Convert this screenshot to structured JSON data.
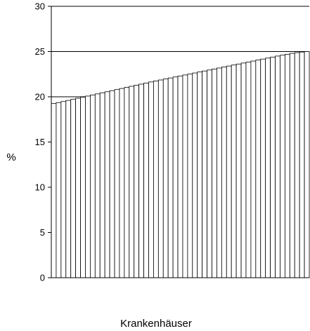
{
  "chart_data": {
    "type": "bar",
    "title": "",
    "xlabel": "Krankenhäuser",
    "ylabel": "%",
    "ylim": [
      0,
      30
    ],
    "yticks": [
      0,
      5,
      10,
      15,
      20,
      25,
      30
    ],
    "ytick_labels": [
      "0",
      "5",
      "10",
      "15",
      "20",
      "25",
      "30"
    ],
    "grid": "horizontal lines at 20, 25, 30",
    "gridlines": [
      20,
      25,
      30
    ],
    "bar_fill": "#ffffff",
    "bar_stroke": "#000000",
    "values": [
      19.25,
      19.36,
      19.48,
      19.6,
      19.72,
      19.84,
      19.96,
      20.08,
      20.2,
      20.32,
      20.44,
      20.56,
      20.68,
      20.8,
      20.92,
      21.04,
      21.16,
      21.28,
      21.4,
      21.52,
      21.64,
      21.75,
      21.86,
      21.97,
      22.08,
      22.19,
      22.3,
      22.41,
      22.52,
      22.63,
      22.74,
      22.85,
      22.96,
      23.07,
      23.18,
      23.29,
      23.4,
      23.51,
      23.62,
      23.73,
      23.84,
      23.95,
      24.06,
      24.17,
      24.28,
      24.39,
      24.5,
      24.6,
      24.7,
      24.8,
      24.88,
      24.95,
      25.0
    ]
  }
}
